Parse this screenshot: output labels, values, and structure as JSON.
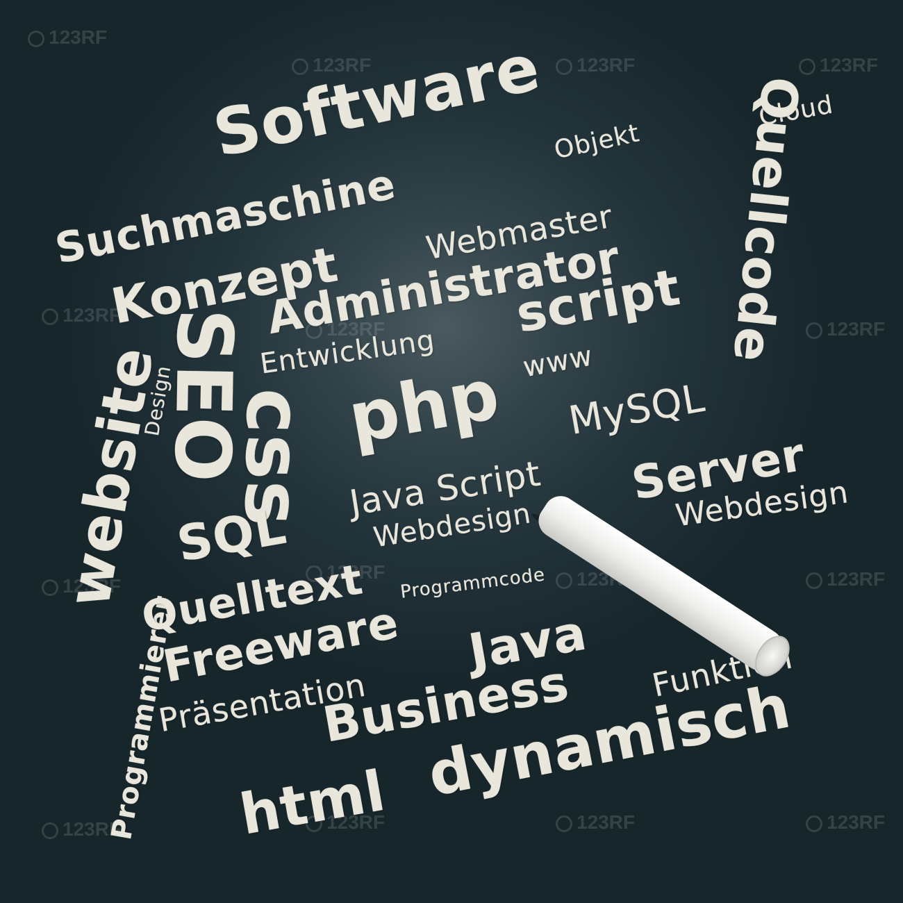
{
  "words": {
    "software": "Software",
    "suchmaschine": "Suchmaschine",
    "objekt": "Objekt",
    "quellcode": "Quellcode",
    "cloud": "Cloud",
    "konzept": "Konzept",
    "webmaster": "Webmaster",
    "administrator": "Administrator",
    "website": "website",
    "design": "Design",
    "seo": "SEO",
    "entwicklung": "Entwicklung",
    "script": "script",
    "www": "www",
    "php": "php",
    "css": "css",
    "mysql": "MySQL",
    "programmierer": "Programmierer",
    "java_script": "Java Script",
    "server": "Server",
    "sql": "SQL",
    "webdesign_left": "Webdesign",
    "webdesign_right": "Webdesign",
    "programmcode": "Programmcode",
    "quelltext": "Quelltext",
    "freeware": "Freeware",
    "java": "Java",
    "praesentation": "Präsentation",
    "business": "Business",
    "funktion": "Funktion",
    "html": "html",
    "dynamisch": "dynamisch"
  },
  "watermark": {
    "text": "123RF",
    "icon": "watermark-camera-icon"
  },
  "colors": {
    "chalk": "#e9e6dc",
    "board": "#1c2a2d"
  }
}
